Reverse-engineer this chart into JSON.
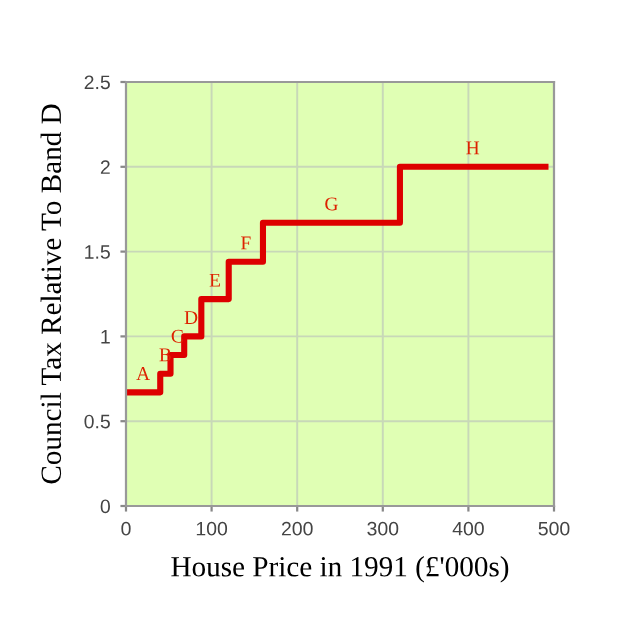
{
  "chart_data": {
    "type": "step",
    "xlabel": "House Price in 1991 (£'000s)",
    "ylabel": "Council Tax Relative To Band D",
    "x": [
      0,
      40,
      52,
      68,
      88,
      120,
      160,
      320,
      490
    ],
    "series": [
      {
        "color": "#dd0000",
        "values": [
          0.67,
          0.78,
          0.89,
          1,
          1.22,
          1.44,
          1.67,
          2,
          2
        ]
      }
    ],
    "annotations": [
      {
        "text": "A",
        "x": 20,
        "y": 0.67
      },
      {
        "text": "B",
        "x": 46,
        "y": 0.78
      },
      {
        "text": "C",
        "x": 60,
        "y": 0.89
      },
      {
        "text": "D",
        "x": 76,
        "y": 1
      },
      {
        "text": "E",
        "x": 104,
        "y": 1.22
      },
      {
        "text": "F",
        "x": 140,
        "y": 1.44
      },
      {
        "text": "G",
        "x": 240,
        "y": 1.67
      },
      {
        "text": "H",
        "x": 405,
        "y": 2
      }
    ],
    "xlim": [
      0,
      500
    ],
    "xticks": [
      0,
      100,
      200,
      300,
      400,
      500
    ],
    "ylim": [
      0,
      2.5
    ],
    "yticks": [
      0,
      0.5,
      1,
      1.5,
      2,
      2.5
    ],
    "grid": true
  }
}
